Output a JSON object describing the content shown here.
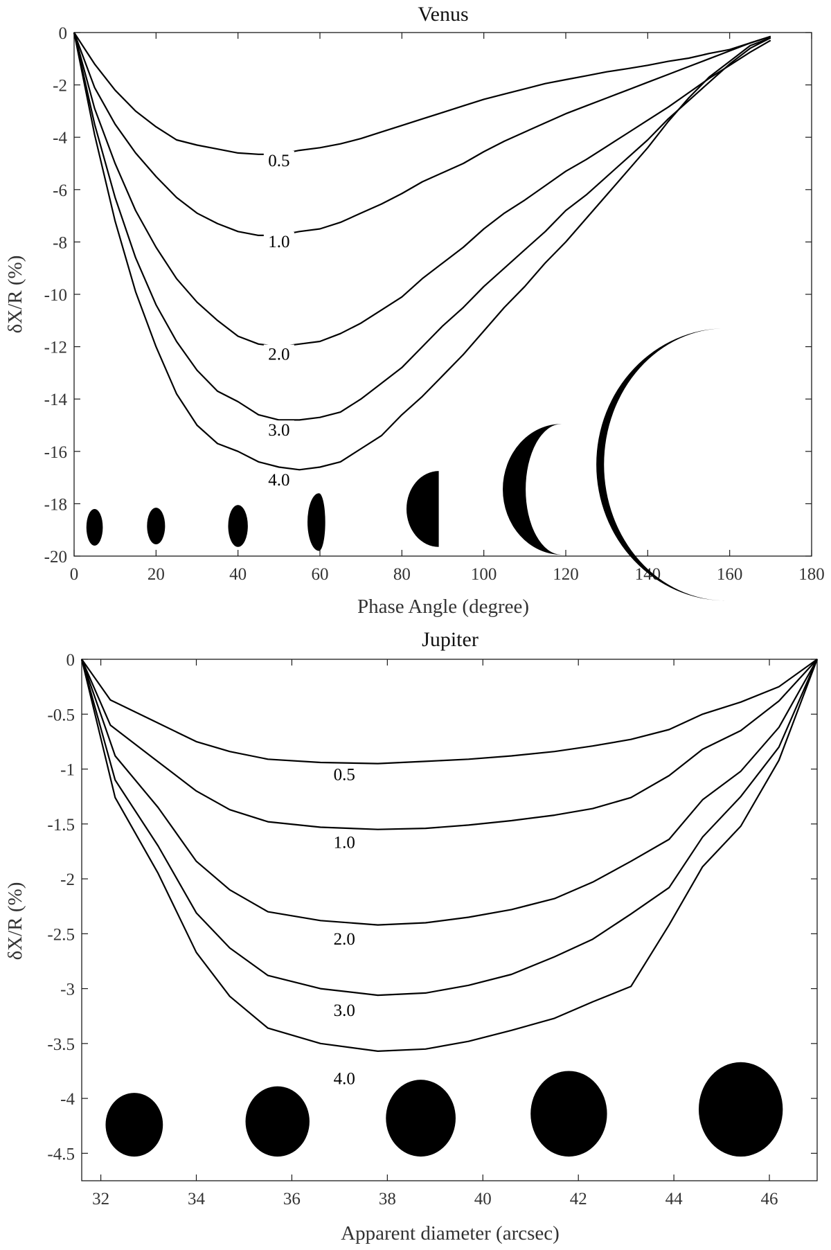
{
  "chart_data": [
    {
      "type": "line",
      "title": "Venus",
      "xlabel": "Phase Angle (degree)",
      "ylabel": "δX/R (%)",
      "xlim": [
        0,
        180
      ],
      "ylim": [
        -20,
        0
      ],
      "xticks": [
        "0",
        "20",
        "40",
        "60",
        "80",
        "100",
        "120",
        "140",
        "160",
        "180"
      ],
      "yticks": [
        "0",
        "-2",
        "-4",
        "-6",
        "-8",
        "-10",
        "-12",
        "-14",
        "-16",
        "-18",
        "-20"
      ],
      "grid": false,
      "series": [
        {
          "name": "0.5",
          "label_at": [
            50,
            -5.1
          ],
          "x": [
            0,
            5,
            10,
            15,
            20,
            25,
            30,
            35,
            40,
            45,
            50,
            55,
            60,
            65,
            70,
            75,
            80,
            85,
            90,
            95,
            100,
            105,
            110,
            115,
            120,
            125,
            130,
            135,
            140,
            145,
            150,
            155,
            160,
            165,
            170
          ],
          "y": [
            0,
            -1.2,
            -2.2,
            -3.0,
            -3.6,
            -4.1,
            -4.3,
            -4.45,
            -4.6,
            -4.65,
            -4.65,
            -4.5,
            -4.4,
            -4.25,
            -4.05,
            -3.8,
            -3.55,
            -3.3,
            -3.05,
            -2.8,
            -2.55,
            -2.35,
            -2.15,
            -1.95,
            -1.8,
            -1.65,
            -1.5,
            -1.38,
            -1.25,
            -1.1,
            -0.98,
            -0.8,
            -0.65,
            -0.4,
            -0.15
          ]
        },
        {
          "name": "1.0",
          "label_at": [
            50,
            -8.2
          ],
          "x": [
            0,
            5,
            10,
            15,
            20,
            25,
            30,
            35,
            40,
            45,
            50,
            55,
            60,
            65,
            70,
            75,
            80,
            85,
            90,
            95,
            100,
            105,
            110,
            115,
            120,
            125,
            130,
            135,
            140,
            145,
            150,
            155,
            160,
            165,
            170
          ],
          "y": [
            0,
            -2.1,
            -3.5,
            -4.6,
            -5.5,
            -6.3,
            -6.9,
            -7.3,
            -7.6,
            -7.75,
            -7.75,
            -7.6,
            -7.5,
            -7.25,
            -6.9,
            -6.55,
            -6.15,
            -5.7,
            -5.35,
            -5.0,
            -4.55,
            -4.15,
            -3.8,
            -3.45,
            -3.1,
            -2.8,
            -2.5,
            -2.2,
            -1.9,
            -1.6,
            -1.3,
            -1.0,
            -0.7,
            -0.4,
            -0.15
          ]
        },
        {
          "name": "2.0",
          "label_at": [
            50,
            -12.5
          ],
          "x": [
            0,
            5,
            10,
            15,
            20,
            25,
            30,
            35,
            40,
            45,
            50,
            55,
            60,
            65,
            70,
            75,
            80,
            85,
            90,
            95,
            100,
            105,
            110,
            115,
            120,
            125,
            130,
            135,
            140,
            145,
            150,
            155,
            160,
            165,
            170
          ],
          "y": [
            0,
            -2.9,
            -5.0,
            -6.8,
            -8.2,
            -9.4,
            -10.3,
            -11.0,
            -11.6,
            -11.9,
            -12.0,
            -11.9,
            -11.8,
            -11.5,
            -11.1,
            -10.6,
            -10.1,
            -9.4,
            -8.8,
            -8.2,
            -7.5,
            -6.9,
            -6.4,
            -5.85,
            -5.3,
            -4.85,
            -4.35,
            -3.85,
            -3.35,
            -2.85,
            -2.3,
            -1.75,
            -1.25,
            -0.75,
            -0.3
          ]
        },
        {
          "name": "3.0",
          "label_at": [
            50,
            -15.4
          ],
          "x": [
            0,
            5,
            10,
            15,
            20,
            25,
            30,
            35,
            40,
            45,
            50,
            55,
            60,
            65,
            70,
            75,
            80,
            85,
            90,
            95,
            100,
            105,
            110,
            115,
            120,
            125,
            130,
            135,
            140,
            145,
            150,
            155,
            160,
            165,
            170
          ],
          "y": [
            0,
            -3.5,
            -6.3,
            -8.6,
            -10.4,
            -11.8,
            -12.9,
            -13.7,
            -14.1,
            -14.6,
            -14.8,
            -14.8,
            -14.7,
            -14.5,
            -14.0,
            -13.4,
            -12.8,
            -12.0,
            -11.2,
            -10.5,
            -9.7,
            -9.0,
            -8.3,
            -7.6,
            -6.8,
            -6.2,
            -5.5,
            -4.8,
            -4.1,
            -3.3,
            -2.6,
            -1.9,
            -1.2,
            -0.6,
            -0.2
          ]
        },
        {
          "name": "4.0",
          "label_at": [
            50,
            -17.3
          ],
          "x": [
            0,
            5,
            10,
            15,
            20,
            25,
            30,
            35,
            40,
            45,
            50,
            55,
            60,
            65,
            70,
            75,
            80,
            85,
            90,
            95,
            100,
            105,
            110,
            115,
            120,
            125,
            130,
            135,
            140,
            145,
            150,
            155,
            160,
            165,
            170
          ],
          "y": [
            0,
            -3.9,
            -7.2,
            -9.9,
            -12.0,
            -13.8,
            -15.0,
            -15.7,
            -16.0,
            -16.4,
            -16.6,
            -16.7,
            -16.6,
            -16.4,
            -15.9,
            -15.4,
            -14.6,
            -13.9,
            -13.1,
            -12.3,
            -11.4,
            -10.5,
            -9.7,
            -8.8,
            -8.0,
            -7.1,
            -6.2,
            -5.3,
            -4.4,
            -3.4,
            -2.5,
            -1.7,
            -1.1,
            -0.5,
            -0.2
          ]
        }
      ],
      "phase_icons": [
        {
          "phase_deg": 3,
          "cx": 5,
          "cy": -18.9,
          "rx": 2.0,
          "ry": 0.7,
          "shape": "full"
        },
        {
          "phase_deg": 20,
          "cx": 20,
          "cy": -18.85,
          "rx": 2.2,
          "ry": 0.7,
          "shape": "full"
        },
        {
          "phase_deg": 40,
          "cx": 40,
          "cy": -18.85,
          "rx": 2.4,
          "ry": 0.8,
          "shape": "full"
        },
        {
          "phase_deg": 60,
          "cx": 58.5,
          "cy": -18.7,
          "rx": 2.8,
          "ry": 1.1,
          "shape": "gibbous"
        },
        {
          "phase_deg": 90,
          "cx": 89,
          "cy": -18.2,
          "r_y": 1.45,
          "shape": "half"
        },
        {
          "phase_deg": 120,
          "cx": 119,
          "cy": -17.45,
          "r_y": 2.5,
          "shape": "crescent"
        },
        {
          "phase_deg": 160,
          "cx": 159,
          "cy": -16.5,
          "r_y": 5.2,
          "shape": "thin-crescent"
        }
      ]
    },
    {
      "type": "line",
      "title": "Jupiter",
      "xlabel": "Apparent diameter (arcsec)",
      "ylabel": "δX/R (%)",
      "xlim": [
        31.6,
        47
      ],
      "ylim": [
        -4.75,
        0
      ],
      "xticks": [
        "32",
        "34",
        "36",
        "38",
        "40",
        "42",
        "44",
        "46"
      ],
      "xtick_values": [
        32,
        34,
        36,
        38,
        40,
        42,
        44,
        46
      ],
      "yticks": [
        "0",
        "-0.5",
        "-1",
        "-1.5",
        "-2",
        "-2.5",
        "-3",
        "-3.5",
        "-4",
        "-4.5"
      ],
      "ytick_values": [
        0,
        -0.5,
        -1,
        -1.5,
        -2,
        -2.5,
        -3,
        -3.5,
        -4,
        -4.5
      ],
      "grid": false,
      "series": [
        {
          "name": "0.5",
          "label_at": [
            37.1,
            -1.1
          ],
          "x": [
            31.6,
            32.2,
            33.1,
            34.0,
            34.7,
            35.5,
            36.6,
            37.8,
            38.8,
            39.7,
            40.6,
            41.5,
            42.3,
            43.1,
            43.9,
            44.6,
            45.4,
            46.2,
            47.0
          ],
          "y": [
            0,
            -0.37,
            -0.56,
            -0.75,
            -0.84,
            -0.91,
            -0.94,
            -0.95,
            -0.93,
            -0.91,
            -0.88,
            -0.84,
            -0.79,
            -0.73,
            -0.64,
            -0.5,
            -0.39,
            -0.25,
            0
          ]
        },
        {
          "name": "1.0",
          "label_at": [
            37.1,
            -1.72
          ],
          "x": [
            31.6,
            32.2,
            33.1,
            34.0,
            34.7,
            35.5,
            36.6,
            37.8,
            38.8,
            39.7,
            40.6,
            41.5,
            42.3,
            43.1,
            43.9,
            44.6,
            45.4,
            46.2,
            47.0
          ],
          "y": [
            0,
            -0.6,
            -0.9,
            -1.2,
            -1.37,
            -1.48,
            -1.53,
            -1.55,
            -1.54,
            -1.51,
            -1.47,
            -1.42,
            -1.36,
            -1.26,
            -1.06,
            -0.82,
            -0.65,
            -0.38,
            0
          ]
        },
        {
          "name": "2.0",
          "label_at": [
            37.1,
            -2.6
          ],
          "x": [
            31.6,
            32.3,
            33.2,
            34.0,
            34.7,
            35.5,
            36.6,
            37.8,
            38.8,
            39.7,
            40.6,
            41.5,
            42.3,
            43.1,
            43.9,
            44.6,
            45.4,
            46.2,
            47.0
          ],
          "y": [
            0,
            -0.88,
            -1.35,
            -1.84,
            -2.1,
            -2.3,
            -2.38,
            -2.42,
            -2.4,
            -2.35,
            -2.28,
            -2.18,
            -2.03,
            -1.84,
            -1.64,
            -1.28,
            -1.02,
            -0.62,
            0
          ]
        },
        {
          "name": "3.0",
          "label_at": [
            37.1,
            -3.25
          ],
          "x": [
            31.6,
            32.3,
            33.2,
            34.0,
            34.7,
            35.5,
            36.6,
            37.8,
            38.8,
            39.7,
            40.6,
            41.5,
            42.3,
            43.1,
            43.9,
            44.6,
            45.4,
            46.2,
            47.0
          ],
          "y": [
            0,
            -1.1,
            -1.7,
            -2.31,
            -2.63,
            -2.88,
            -3.0,
            -3.06,
            -3.04,
            -2.97,
            -2.87,
            -2.71,
            -2.55,
            -2.32,
            -2.08,
            -1.62,
            -1.25,
            -0.8,
            0
          ]
        },
        {
          "name": "4.0",
          "label_at": [
            37.1,
            -3.87
          ],
          "x": [
            31.6,
            32.3,
            33.2,
            34.0,
            34.7,
            35.5,
            36.6,
            37.8,
            38.8,
            39.7,
            40.6,
            41.5,
            42.3,
            43.1,
            43.9,
            44.6,
            45.4,
            46.2,
            47.0
          ],
          "y": [
            0,
            -1.26,
            -1.95,
            -2.67,
            -3.07,
            -3.36,
            -3.5,
            -3.57,
            -3.55,
            -3.48,
            -3.38,
            -3.27,
            -3.12,
            -2.98,
            -2.42,
            -1.89,
            -1.52,
            -0.92,
            0
          ]
        }
      ],
      "diameter_icons": [
        {
          "diameter_arcsec": 32.7,
          "cy": -4.24,
          "rx": 0.6,
          "ry": 0.29
        },
        {
          "diameter_arcsec": 35.7,
          "cy": -4.21,
          "rx": 0.67,
          "ry": 0.32
        },
        {
          "diameter_arcsec": 38.7,
          "cy": -4.18,
          "rx": 0.73,
          "ry": 0.35
        },
        {
          "diameter_arcsec": 41.8,
          "cy": -4.14,
          "rx": 0.8,
          "ry": 0.39
        },
        {
          "diameter_arcsec": 45.4,
          "cy": -4.1,
          "rx": 0.88,
          "ry": 0.43
        }
      ]
    }
  ]
}
